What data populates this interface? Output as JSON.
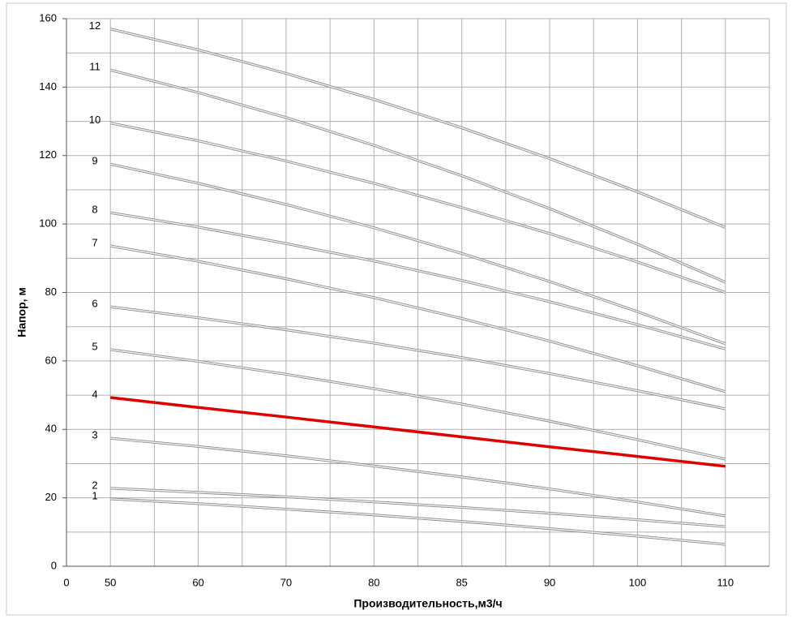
{
  "chart_data": {
    "type": "line",
    "xlabel": "Производительность,м3/ч",
    "ylabel": "Напор, м",
    "categories": [
      "0",
      "50",
      "60",
      "70",
      "80",
      "85",
      "90",
      "100",
      "110"
    ],
    "ylim": [
      0,
      160
    ],
    "yticks": [
      0,
      20,
      40,
      60,
      80,
      100,
      120,
      140,
      160
    ],
    "ygrid": [
      0,
      10,
      20,
      30,
      40,
      50,
      60,
      70,
      80,
      90,
      100,
      110,
      120,
      130,
      140,
      150,
      160
    ],
    "grid": true,
    "series": [
      {
        "name": "1",
        "color": "#bfbfbf",
        "values": [
          null,
          19.7,
          18.3,
          16.7,
          15,
          13.1,
          11,
          8.8,
          6.4
        ]
      },
      {
        "name": "2",
        "color": "#bfbfbf",
        "values": [
          null,
          22.8,
          21.6,
          20.3,
          18.8,
          17.2,
          15.5,
          13.6,
          11.6
        ]
      },
      {
        "name": "3",
        "color": "#bfbfbf",
        "values": [
          null,
          37.4,
          35,
          32.3,
          29.3,
          26.1,
          22.6,
          18.8,
          14.7
        ]
      },
      {
        "name": "4",
        "color": "#e00000",
        "values": [
          null,
          49.3,
          46.4,
          43.6,
          40.7,
          37.8,
          34.9,
          32.1,
          29.2
        ]
      },
      {
        "name": "5",
        "color": "#bfbfbf",
        "values": [
          null,
          63.3,
          59.9,
          56.1,
          51.9,
          47.4,
          42.4,
          37,
          31.3
        ]
      },
      {
        "name": "6",
        "color": "#bfbfbf",
        "values": [
          null,
          75.8,
          72.6,
          69.1,
          65.2,
          61,
          56.3,
          51.3,
          46
        ]
      },
      {
        "name": "7",
        "color": "#bfbfbf",
        "values": [
          null,
          93.6,
          89.1,
          84,
          78.5,
          72.4,
          65.8,
          58.6,
          51
        ]
      },
      {
        "name": "8",
        "color": "#bfbfbf",
        "values": [
          null,
          103.3,
          99.1,
          94.3,
          89.2,
          83.5,
          77.3,
          70.6,
          63.5
        ]
      },
      {
        "name": "9",
        "color": "#bfbfbf",
        "values": [
          null,
          117.5,
          111.9,
          105.7,
          98.9,
          91.4,
          83.2,
          74.4,
          65
        ]
      },
      {
        "name": "10",
        "color": "#bfbfbf",
        "values": [
          null,
          129.5,
          124.3,
          118.4,
          111.9,
          104.8,
          97.2,
          88.9,
          80
        ]
      },
      {
        "name": "11",
        "color": "#bfbfbf",
        "values": [
          null,
          145,
          138.4,
          131.1,
          123,
          114.1,
          104.5,
          94.1,
          83
        ]
      },
      {
        "name": "12",
        "color": "#bfbfbf",
        "values": [
          null,
          157,
          150.9,
          144,
          136.4,
          128.1,
          119.1,
          109.4,
          99
        ]
      }
    ]
  }
}
